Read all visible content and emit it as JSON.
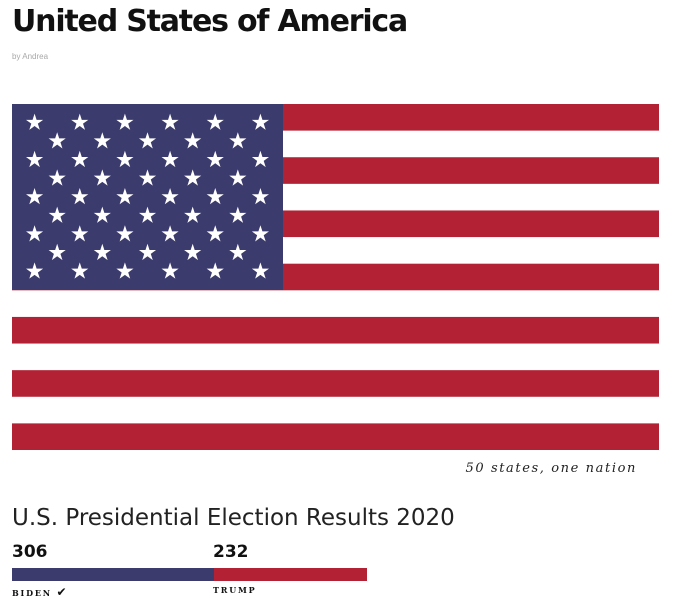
{
  "header": {
    "title": "United States of America",
    "byline": "by Andrea"
  },
  "flag": {
    "stripe_count": 13,
    "star_count": 50,
    "colors": {
      "red": "#b22234",
      "blue": "#3c3b6e",
      "white": "#ffffff"
    },
    "caption": "50 states, one nation"
  },
  "results": {
    "title": "U.S. Presidential Election Results 2020",
    "candidates": [
      {
        "name": "Biden",
        "votes": 306,
        "winner_mark": "✔",
        "color": "#3c3b6e"
      },
      {
        "name": "Trump",
        "votes": 232,
        "winner_mark": "",
        "color": "#b22234"
      }
    ]
  }
}
